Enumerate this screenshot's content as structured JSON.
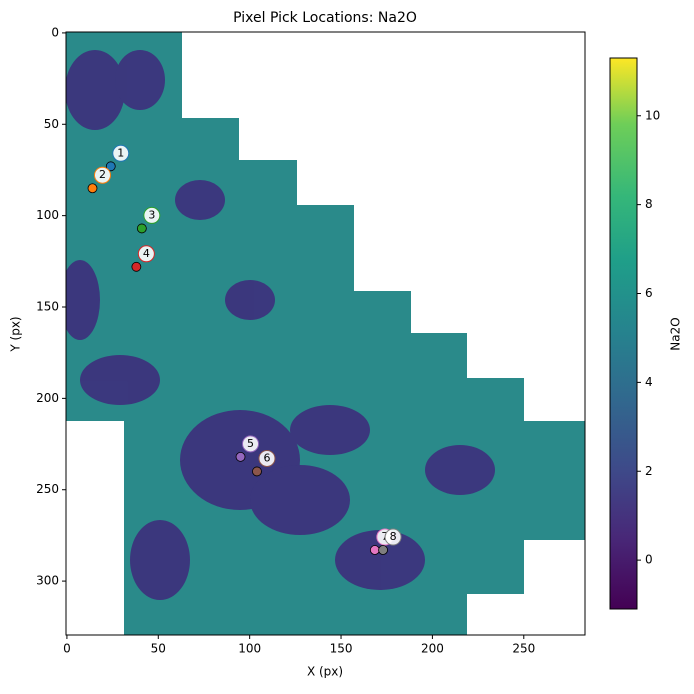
{
  "chart_data": {
    "type": "scatter",
    "title": "Pixel Pick Locations: Na2O",
    "x_label": "X (px)",
    "y_label": "Y (px)",
    "colorbar_label": "Na2O",
    "xlim": [
      -0.5,
      283.5
    ],
    "ylim": [
      329.5,
      -0.5
    ],
    "xticks": [
      0,
      50,
      100,
      150,
      200,
      250
    ],
    "yticks": [
      0,
      50,
      100,
      150,
      200,
      250,
      300
    ],
    "clim": [
      -1.1,
      11.3
    ],
    "cticks": [
      0,
      2,
      4,
      6,
      8,
      10
    ],
    "points": [
      {
        "label": "1",
        "x": 24,
        "y": 73,
        "color": "#1f77b4"
      },
      {
        "label": "2",
        "x": 14,
        "y": 85,
        "color": "#ff7f0e"
      },
      {
        "label": "3",
        "x": 41,
        "y": 107,
        "color": "#2ca02c"
      },
      {
        "label": "4",
        "x": 38,
        "y": 128,
        "color": "#d62728"
      },
      {
        "label": "5",
        "x": 95,
        "y": 232,
        "color": "#9467bd"
      },
      {
        "label": "6",
        "x": 104,
        "y": 240,
        "color": "#8c564b"
      },
      {
        "label": "7",
        "x": 168.5,
        "y": 283,
        "color": "#e377c2"
      },
      {
        "label": "8",
        "x": 173,
        "y": 283,
        "color": "#7f7f7f"
      }
    ]
  }
}
